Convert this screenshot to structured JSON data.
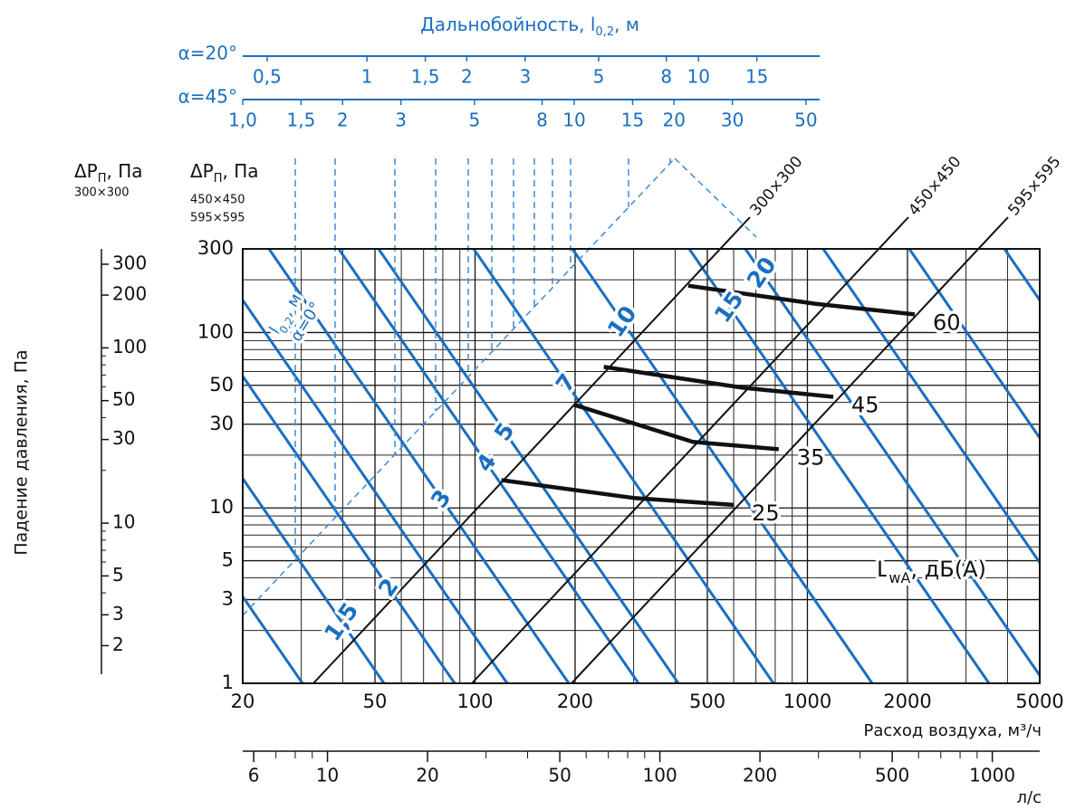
{
  "chart_data": {
    "type": "line",
    "title_parts": [
      "Дальнобойность, l",
      "0,2",
      ", м"
    ],
    "xlabel": "Расход воздуха, м³/ч",
    "ylabel": "Падение давления, Па",
    "xscale": "log",
    "yscale": "log",
    "grid": true,
    "xlim": [
      20,
      5000
    ],
    "xticks": [
      20,
      50,
      100,
      200,
      500,
      1000,
      2000,
      5000
    ],
    "xminor": [
      30,
      40,
      60,
      70,
      80,
      90,
      300,
      400,
      600,
      700,
      800,
      900,
      3000,
      4000
    ],
    "ylim": [
      1,
      300
    ],
    "yticks": [
      1,
      3,
      5,
      10,
      30,
      50,
      100,
      300
    ],
    "yminor": [
      2,
      4,
      6,
      7,
      8,
      9,
      20,
      40,
      60,
      70,
      80,
      90,
      200
    ],
    "y_label_parts": [
      "ΔP",
      "П",
      ", Па"
    ],
    "y_label_sizes": [
      "450×450",
      "595×595"
    ],
    "y2_label_parts": [
      "ΔP",
      "П",
      ", Па"
    ],
    "y2_label_sizes": [
      "300×300"
    ],
    "y2lim": [
      1.22,
      367
    ],
    "y2ticks": [
      2,
      3,
      5,
      10,
      30,
      50,
      100,
      200,
      300
    ],
    "y2minor": [
      4,
      6,
      7,
      8,
      9,
      20,
      40,
      60,
      70,
      80,
      90
    ],
    "x2label": "л/с",
    "x2lim": [
      5.56,
      1389
    ],
    "x2ticks": [
      6,
      10,
      20,
      50,
      100,
      200,
      500,
      1000
    ],
    "x2minor": [
      7,
      8,
      9,
      30,
      40,
      60,
      70,
      80,
      90,
      300,
      400,
      600,
      700,
      800,
      900
    ],
    "x3": {
      "label": "α=20°",
      "lim": [
        0.422,
        23.2
      ],
      "ticks": [
        {
          "value": 0.5,
          "label": "0,5"
        },
        1,
        {
          "value": 1.5,
          "label": "1,5"
        },
        2,
        3,
        5,
        8,
        10,
        15
      ]
    },
    "x4": {
      "label": "α=45°",
      "lim": [
        1,
        55
      ],
      "ticks": [
        {
          "value": 1,
          "label": "1,0"
        },
        {
          "value": 1.5,
          "label": "1,5"
        },
        2,
        3,
        5,
        8,
        10,
        15,
        20,
        30,
        50
      ]
    },
    "size_lines": [
      "300×300",
      "450×450",
      "595×595"
    ],
    "throw_line_parts": [
      "l",
      "0,2",
      ", м"
    ],
    "throw_line_angle": "α=0°",
    "throw_line_labels": [
      "1,5",
      "2",
      "3",
      "4",
      "5",
      "7",
      "10",
      "15",
      "20"
    ],
    "series_label_parts": [
      "L",
      "wA",
      ", дБ(A)"
    ],
    "series": [
      {
        "name": "25",
        "color": "#111111",
        "x": [
          120,
          300,
          600
        ],
        "values": [
          14.4,
          11.4,
          10.4
        ]
      },
      {
        "name": "35",
        "color": "#111111",
        "x": [
          199,
          452,
          820
        ],
        "values": [
          38.7,
          23.8,
          21.6
        ]
      },
      {
        "name": "45",
        "color": "#111111",
        "x": [
          244,
          638,
          1196
        ],
        "values": [
          63.7,
          48.5,
          43
        ]
      },
      {
        "name": "60",
        "color": "#111111",
        "x": [
          438,
          1054,
          2103
        ],
        "values": [
          185,
          146,
          127
        ]
      }
    ]
  }
}
